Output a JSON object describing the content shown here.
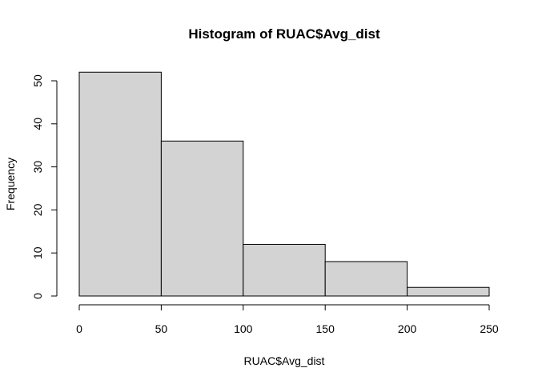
{
  "chart_data": {
    "type": "bar",
    "title": "Histogram of RUAC$Avg_dist",
    "xlabel": "RUAC$Avg_dist",
    "ylabel": "Frequency",
    "bins": [
      [
        0,
        50
      ],
      [
        50,
        100
      ],
      [
        100,
        150
      ],
      [
        150,
        200
      ],
      [
        200,
        250
      ]
    ],
    "values": [
      52,
      36,
      12,
      8,
      2
    ],
    "xlim": [
      0,
      250
    ],
    "ylim": [
      0,
      54
    ],
    "x_ticks": [
      0,
      50,
      100,
      150,
      200,
      250
    ],
    "y_ticks": [
      0,
      10,
      20,
      30,
      40,
      50
    ],
    "grid": false,
    "colors": {
      "bar_fill": "#d3d3d3",
      "bar_stroke": "#000000"
    }
  }
}
